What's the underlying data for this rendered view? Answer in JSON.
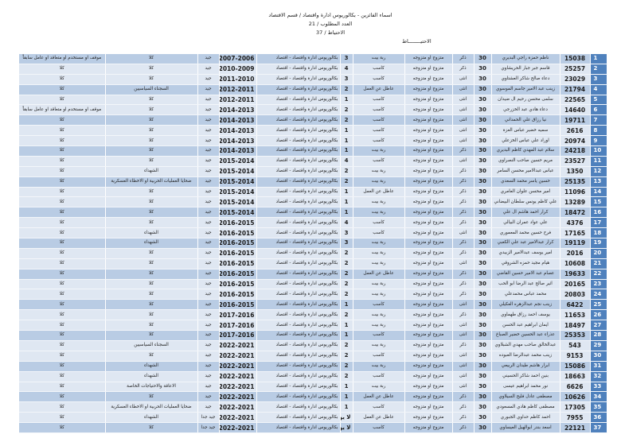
{
  "header": {
    "title": "اسماء الفائزين - بكالوريوس ادارة واقتصاد / قسم الاقتصاد",
    "required": "العدد المطلوب / 21",
    "reserve_count": "الاحتياط / 37",
    "reserve_label": "الاحتيــــــــاط"
  },
  "colors": {
    "index_column": "#4f81bd",
    "row_dark": "#b9cce4",
    "row_light": "#dfe7f2"
  },
  "rows": [
    [
      "1",
      "15038",
      "ناظم حمزة راجي البديري",
      "30",
      "ذكر",
      "متزوج او متزوجه",
      "ربة بيت",
      "3",
      "بكالوريوس ادارة واقتصاد - اقتصاد",
      "2007-2006",
      "جيد",
      "كلا",
      "موقف او مستخدم او متعاقد او عامل سابقاً"
    ],
    [
      "2",
      "25257",
      "قاسم جبر جبار الحريشاوي",
      "30",
      "ذكر",
      "متزوج او متزوجه",
      "كاسب",
      "4",
      "بكالوريوس ادارة واقتصاد - اقتصاد",
      "2010-2009",
      "جيد",
      "كلا",
      "كلا"
    ],
    [
      "3",
      "23029",
      "دعاء صالح شاكر العشتاوي",
      "30",
      "انثى",
      "متزوج او متزوجه",
      "كاسب",
      "3",
      "بكالوريوس ادارة واقتصاد - اقتصاد",
      "2011-2010",
      "جيد",
      "كلا",
      "كلا"
    ],
    [
      "4",
      "21794",
      "زينب عبد الامير جاسم الموسوي",
      "30",
      "انثى",
      "متزوج او متزوجه",
      "عاطل عن العمل",
      "2",
      "بكالوريوس ادارة واقتصاد - اقتصاد",
      "2012-2011",
      "جيد",
      "السجناء السياسيين",
      "كلا"
    ],
    [
      "5",
      "22565",
      "سلمى محسن رحيم ال ضيدان",
      "30",
      "انثى",
      "متزوج او متزوجه",
      "كاسب",
      "1",
      "بكالوريوس ادارة واقتصاد - اقتصاد",
      "2012-2011",
      "جيد",
      "كلا",
      "كلا"
    ],
    [
      "6",
      "14640",
      "دعاء هادي عبد الخزرجي",
      "30",
      "انثى",
      "متزوج او متزوجه",
      "كاسب",
      "2",
      "بكالوريوس ادارة واقتصاد - اقتصاد",
      "2014-2013",
      "جيد",
      "كلا",
      "موقف او مستخدم او متعاقد او عامل سابقاً"
    ],
    [
      "7",
      "19711",
      "نيا رزاق علي الحمداني",
      "30",
      "انثى",
      "متزوج او متزوجه",
      "كاسب",
      "2",
      "بكالوريوس ادارة واقتصاد - اقتصاد",
      "2014-2013",
      "جيد",
      "كلا",
      "كلا"
    ],
    [
      "8",
      "2616",
      "سميه خضير عباس العزة",
      "30",
      "انثى",
      "متزوج او متزوجه",
      "كاسب",
      "1",
      "بكالوريوس ادارة واقتصاد - اقتصاد",
      "2014-2013",
      "جيد",
      "كلا",
      "كلا"
    ],
    [
      "9",
      "20974",
      "اوراد علي عباس الخزعلي",
      "30",
      "انثى",
      "متزوج او متزوجه",
      "كاسب",
      "1",
      "بكالوريوس ادارة واقتصاد - اقتصاد",
      "2014-2013",
      "جيد",
      "كلا",
      "كلا"
    ],
    [
      "10",
      "24218",
      "سلام عبد المهدي كاظم البديري",
      "30",
      "ذكر",
      "متزوج او متزوجه",
      "ربة بيت",
      "1",
      "بكالوريوس ادارة واقتصاد - اقتصاد",
      "2014-2013",
      "جيد",
      "كلا",
      "كلا"
    ],
    [
      "11",
      "23527",
      "مريم حسين صاحب النصراوي",
      "30",
      "انثى",
      "متزوج او متزوجه",
      "كاسب",
      "4",
      "بكالوريوس ادارة واقتصاد - اقتصاد",
      "2015-2014",
      "جيد",
      "كلا",
      "كلا"
    ],
    [
      "12",
      "1350",
      "عباس عبدالامير محسن السامر",
      "30",
      "ذكر",
      "متزوج او متزوجه",
      "ربة بيت",
      "2",
      "بكالوريوس ادارة واقتصاد - اقتصاد",
      "2015-2014",
      "جيد",
      "الشهداء",
      "كلا"
    ],
    [
      "13",
      "25135",
      "حسين ياسر محمد السعدي",
      "30",
      "ذكر",
      "متزوج او متزوجه",
      "ربة بيت",
      "2",
      "بكالوريوس ادارة واقتصاد - اقتصاد",
      "2015-2014",
      "جيد",
      "ضحايا العمليات الحربية او الاخطاء العسكرية",
      "كلا"
    ],
    [
      "14",
      "11096",
      "امير محسن علوان العامري",
      "30",
      "ذكر",
      "متزوج او متزوجه",
      "عاطل عن العمل",
      "1",
      "بكالوريوس ادارة واقتصاد - اقتصاد",
      "2015-2014",
      "جيد",
      "كلا",
      "كلا"
    ],
    [
      "15",
      "13289",
      "علي كاظم يونس سلطان البيضاني",
      "30",
      "ذكر",
      "متزوج او متزوجه",
      "ربة بيت",
      "1",
      "بكالوريوس ادارة واقتصاد - اقتصاد",
      "2015-2014",
      "جيد",
      "كلا",
      "كلا"
    ],
    [
      "16",
      "18472",
      "كرار احمد هاشم ال علي",
      "30",
      "ذكر",
      "متزوج او متزوجه",
      "ربة بيت",
      "1",
      "بكالوريوس ادارة واقتصاد - اقتصاد",
      "2015-2014",
      "جيد",
      "كلا",
      "كلا"
    ],
    [
      "17",
      "4376",
      "علي عواد عمران البيالي",
      "30",
      "ذكر",
      "متزوج او متزوجه",
      "كاسب",
      "4",
      "بكالوريوس ادارة واقتصاد - اقتصاد",
      "2016-2015",
      "جيد",
      "كلا",
      "كلا"
    ],
    [
      "18",
      "17165",
      "فرح حسين محمد المعموري",
      "30",
      "انثى",
      "متزوج او متزوجه",
      "كاسب",
      "3",
      "بكالوريوس ادارة واقتصاد - اقتصاد",
      "2016-2015",
      "جيد",
      "الشهداء",
      "كلا"
    ],
    [
      "19",
      "19119",
      "كرار عبدالامير عبد علي الكعبي",
      "30",
      "ذكر",
      "متزوج او متزوجه",
      "ربة بيت",
      "3",
      "بكالوريوس ادارة واقتصاد - اقتصاد",
      "2016-2015",
      "جيد",
      "الشهداء",
      "كلا"
    ],
    [
      "20",
      "2016",
      "امير يوسف عبدالامير الزبيدي",
      "30",
      "ذكر",
      "متزوج او متزوجه",
      "ربة بيت",
      "2",
      "بكالوريوس ادارة واقتصاد - اقتصاد",
      "2016-2015",
      "جيد",
      "كلا",
      "كلا"
    ],
    [
      "21",
      "10608",
      "هيام مجيد حمزه الشروقي",
      "30",
      "انثى",
      "متزوج او متزوجه",
      "ربة بيت",
      "2",
      "بكالوريوس ادارة واقتصاد - اقتصاد",
      "2016-2015",
      "جيد",
      "كلا",
      "كلا"
    ],
    [
      "22",
      "19633",
      "عصام عبد الامير حسين القاضي",
      "30",
      "ذكر",
      "متزوج او متزوجه",
      "عاطل عن العمل",
      "2",
      "بكالوريوس ادارة واقتصاد - اقتصاد",
      "2016-2015",
      "جيد",
      "كلا",
      "كلا"
    ],
    [
      "23",
      "20165",
      "اثير صالح عبد الرضا ابو الحب",
      "30",
      "ذكر",
      "متزوج او متزوجه",
      "ربة بيت",
      "2",
      "بكالوريوس ادارة واقتصاد - اقتصاد",
      "2016-2015",
      "جيد",
      "كلا",
      "كلا"
    ],
    [
      "24",
      "20803",
      "محمد عباس محمدعلي",
      "30",
      "ذكر",
      "متزوج او متزوجه",
      "ربة بيت",
      "2",
      "بكالوريوس ادارة واقتصاد - اقتصاد",
      "2016-2015",
      "جيد",
      "كلا",
      "كلا"
    ],
    [
      "25",
      "6422",
      "زينب نجم عبدالزهره العكيلي",
      "30",
      "انثى",
      "متزوج او متزوجه",
      "كاسب",
      "1",
      "بكالوريوس ادارة واقتصاد - اقتصاد",
      "2016-2015",
      "جيد",
      "كلا",
      "كلا"
    ],
    [
      "26",
      "11653",
      "يوسف احمد رزاق طهماوي",
      "30",
      "ذكر",
      "متزوج او متزوجه",
      "ربة بيت",
      "2",
      "بكالوريوس ادارة واقتصاد - اقتصاد",
      "2017-2016",
      "جيد",
      "كلا",
      "كلا"
    ],
    [
      "27",
      "18497",
      "ايمان ابراهيم عبد الحسن",
      "30",
      "انثى",
      "متزوج او متزوجه",
      "ربة بيت",
      "1",
      "بكالوريوس ادارة واقتصاد - اقتصاد",
      "2017-2016",
      "جيد",
      "كلا",
      "كلا"
    ],
    [
      "28",
      "25353",
      "عذراء عبد الحسين خضير الصباغ",
      "30",
      "انثى",
      "متزوج او متزوجه",
      "كاسب",
      "1",
      "بكالوريوس ادارة واقتصاد - اقتصاد",
      "2017-2016",
      "جيد",
      "كلا",
      "كلا"
    ],
    [
      "29",
      "543",
      "عبدالخالق صاحب مهدي الشبلاوي",
      "30",
      "ذكر",
      "متزوج او متزوجه",
      "ربة بيت",
      "2",
      "بكالوريوس ادارة واقتصاد - اقتصاد",
      "2022-2021",
      "جيد",
      "السجناء السياسيين",
      "كلا"
    ],
    [
      "30",
      "9153",
      "زينب محمد عبدالرضا العبوده",
      "30",
      "انثى",
      "متزوج او متزوجه",
      "كاسب",
      "2",
      "بكالوريوس ادارة واقتصاد - اقتصاد",
      "2022-2021",
      "جيد",
      "كلا",
      "كلا"
    ],
    [
      "31",
      "15086",
      "ابرار هاشم طيدان الربيعي",
      "30",
      "انثى",
      "متزوج او متزوجه",
      "ربة بيت",
      "2",
      "بكالوريوس ادارة واقتصاد - اقتصاد",
      "2022-2021",
      "جيد",
      "الشهداء",
      "كلا"
    ],
    [
      "32",
      "18663",
      "بنين احمد شاكر الحسيني",
      "30",
      "انثى",
      "متزوج او متزوجه",
      "كاسب",
      "2",
      "بكالوريوس ادارة واقتصاد - اقتصاد",
      "2022-2021",
      "جيد",
      "الشهداء",
      "كلا"
    ],
    [
      "33",
      "6626",
      "نور محمد ابراهيم عيسى",
      "30",
      "انثى",
      "متزوج او متزوجه",
      "ربة بيت",
      "1",
      "بكالوريوس ادارة واقتصاد - اقتصاد",
      "2022-2021",
      "جيد",
      "الاعاقة والاحتياجات الخاصة",
      "كلا"
    ],
    [
      "34",
      "10626",
      "مصطفى عادل فليح السيلاوي",
      "30",
      "ذكر",
      "متزوج او متزوجه",
      "عاطل عن العمل",
      "1",
      "بكالوريوس ادارة واقتصاد - اقتصاد",
      "2022-2021",
      "جيد",
      "كلا",
      "كلا"
    ],
    [
      "35",
      "17305",
      "مصطفى كاظم هادي المسعودي",
      "30",
      "ذكر",
      "متزوج او متزوجه",
      "كاسب",
      "1",
      "بكالوريوس ادارة واقتصاد - اقتصاد",
      "2022-2021",
      "جيد",
      "ضحايا العمليات الحربية او الاخطاء العسكرية",
      "كلا"
    ],
    [
      "36",
      "7955",
      "احمد كاظم حداوي الجبوري",
      "30",
      "ذكر",
      "متزوج او متزوجه",
      "عاطل عن العمل",
      "لا يوجد",
      "بكالوريوس ادارة واقتصاد - اقتصاد",
      "2022-2021",
      "جيد جدا",
      "الشهداء",
      "كلا"
    ],
    [
      "37",
      "22121",
      "اسعد بندر ابوالهيل العيساوي",
      "30",
      "ذكر",
      "متزوج او متزوجه",
      "كاسب",
      "لا يوجد",
      "بكالوريوس ادارة واقتصاد - اقتصاد",
      "2022-2021",
      "جيد جدا",
      "كلا",
      "كلا"
    ]
  ]
}
